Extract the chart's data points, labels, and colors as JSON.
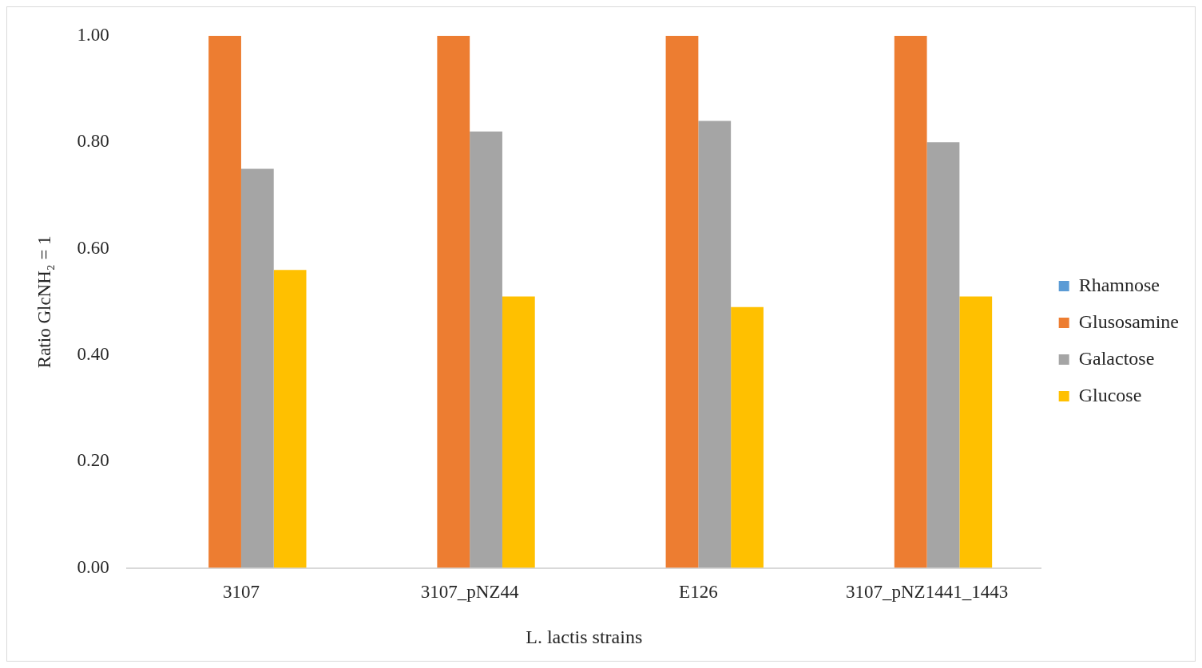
{
  "chart_data": {
    "type": "bar",
    "xlabel": "L. lactis strains",
    "ylabel": "Ratio GlcNH₂ = 1",
    "categories": [
      "3107",
      "3107_pNZ44",
      "E126",
      "3107_pNZ1441_1443"
    ],
    "series": [
      {
        "name": "Rhamnose",
        "color": "#5b9bd5",
        "values": [
          null,
          null,
          null,
          null
        ]
      },
      {
        "name": "Glusosamine",
        "color": "#ed7d31",
        "values": [
          1.0,
          1.0,
          1.0,
          1.0
        ]
      },
      {
        "name": "Galactose",
        "color": "#a5a5a5",
        "values": [
          0.75,
          0.82,
          0.84,
          0.8
        ]
      },
      {
        "name": "Glucose",
        "color": "#ffc000",
        "values": [
          0.56,
          0.51,
          0.49,
          0.51
        ]
      }
    ],
    "ylim": [
      0,
      1
    ],
    "yticks": [
      {
        "value": 0,
        "label": "0.00"
      },
      {
        "value": 0.2,
        "label": "0.20"
      },
      {
        "value": 0.4,
        "label": "0.40"
      },
      {
        "value": 0.6,
        "label": "0.60"
      },
      {
        "value": 0.8,
        "label": "0.80"
      },
      {
        "value": 1,
        "label": "1.00"
      }
    ],
    "grid": false,
    "legend": "right"
  }
}
